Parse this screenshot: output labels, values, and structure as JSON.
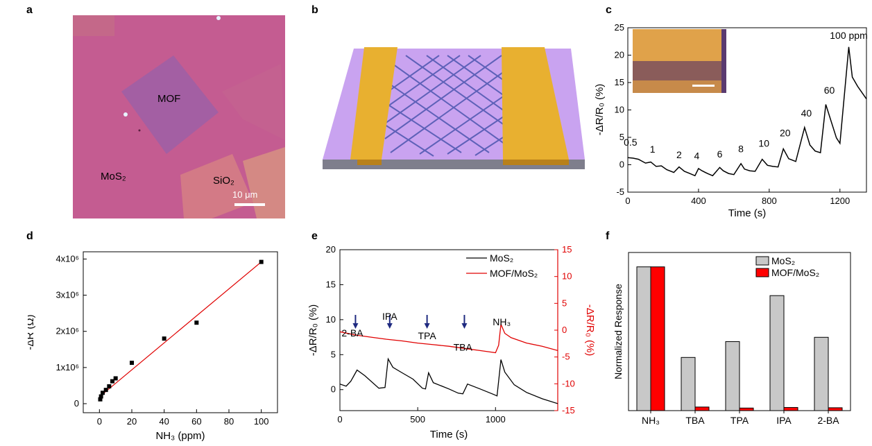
{
  "panels": {
    "a": {
      "letter": "a",
      "labels": {
        "mof": "MOF",
        "mos2": "MoS₂",
        "sio2": "SiO₂",
        "scale": "10 μm"
      }
    },
    "b": {
      "letter": "b"
    },
    "c": {
      "letter": "c",
      "xlabel": "Time (s)",
      "ylabel": "-ΔR/R₀ (%)",
      "xlim": [
        0,
        1350
      ],
      "ylim": [
        -5,
        25
      ],
      "xticks": [
        0,
        400,
        800,
        1200
      ],
      "yticks": [
        -5,
        0,
        5,
        10,
        15,
        20,
        25
      ],
      "annotations": [
        "0.5",
        "1",
        "2",
        "4",
        "6",
        "8",
        "10",
        "20",
        "40",
        "60",
        "100 ppm"
      ]
    },
    "d": {
      "letter": "d",
      "xlabel": "NH₃ (ppm)",
      "ylabel": "-ΔR (Ω)",
      "xticks": [
        0,
        20,
        40,
        60,
        80,
        100
      ],
      "ytick_labels": [
        "0",
        "1x10⁶",
        "2x10⁶",
        "3x10⁶",
        "4x10⁶"
      ]
    },
    "e": {
      "letter": "e",
      "xlabel": "Time (s)",
      "ylabel_left": "-ΔR/R₀ (%)",
      "ylabel_right": "-ΔR/R₀ (%)",
      "xticks": [
        0,
        500,
        1000
      ],
      "yticks_left": [
        0,
        5,
        10,
        15,
        20
      ],
      "yticks_right": [
        -15,
        -10,
        -5,
        0,
        5,
        10,
        15
      ],
      "legend": [
        "MoS₂",
        "MOF/MoS₂"
      ],
      "annotations": [
        "2-BA",
        "IPA",
        "TPA",
        "TBA",
        "NH₃"
      ]
    },
    "f": {
      "letter": "f",
      "ylabel": "Normalized Response",
      "legend": [
        "MoS₂",
        "MOF/MoS₂"
      ]
    }
  },
  "colors": {
    "mos2": "#000000",
    "mof_mos2": "#e00000",
    "bar_gray": "#c8c8c8",
    "bar_red": "#ff0000",
    "arrow": "#1f2a80",
    "gold": "#e8b030",
    "substrate": "#c9a3f0"
  },
  "chart_data": [
    {
      "panel": "c",
      "type": "line",
      "x": [
        0,
        30,
        60,
        100,
        130,
        160,
        190,
        220,
        260,
        290,
        320,
        350,
        380,
        400,
        420,
        450,
        480,
        520,
        540,
        570,
        600,
        640,
        660,
        690,
        720,
        760,
        790,
        820,
        850,
        880,
        910,
        950,
        1000,
        1030,
        1060,
        1090,
        1120,
        1180,
        1200,
        1250,
        1270,
        1300,
        1350
      ],
      "y": [
        1.3,
        1.2,
        1.0,
        0.3,
        0.5,
        -0.3,
        -0.2,
        -0.9,
        -1.4,
        -0.4,
        -1.2,
        -1.6,
        -2.0,
        -0.7,
        -1.1,
        -1.6,
        -2.0,
        -0.5,
        -1.1,
        -1.6,
        -1.8,
        0.2,
        -0.8,
        -1.1,
        -1.2,
        1.0,
        -0.1,
        -0.3,
        -0.4,
        2.9,
        1.1,
        0.6,
        6.8,
        3.6,
        2.5,
        2.2,
        11.0,
        4.9,
        3.9,
        21.5,
        16.0,
        14.3,
        12.0
      ]
    },
    {
      "panel": "d",
      "type": "scatter",
      "x": [
        0.5,
        1,
        2,
        4,
        6,
        8,
        10,
        20,
        40,
        60,
        100
      ],
      "y": [
        120000,
        200000,
        300000,
        380000,
        480000,
        620000,
        700000,
        1130000,
        1800000,
        2240000,
        3920000
      ],
      "fit": {
        "x": [
          0,
          100
        ],
        "y": [
          190000,
          3920000
        ]
      },
      "ylim": [
        -250000,
        4200000
      ],
      "xlim": [
        -10,
        110
      ]
    },
    {
      "panel": "e",
      "type": "line",
      "series": [
        {
          "name": "MoS₂",
          "axis": "left",
          "x": [
            0,
            40,
            70,
            110,
            160,
            250,
            290,
            310,
            340,
            400,
            470,
            530,
            550,
            570,
            600,
            700,
            760,
            790,
            820,
            900,
            990,
            1010,
            1035,
            1060,
            1120,
            1200,
            1300,
            1400
          ],
          "y": [
            0.8,
            0.5,
            1.2,
            2.8,
            2.0,
            0.2,
            0.3,
            4.4,
            3.2,
            2.4,
            1.5,
            0.2,
            0.1,
            2.4,
            1.0,
            0.1,
            -0.5,
            -0.6,
            0.8,
            0.1,
            -0.7,
            -0.9,
            4.3,
            2.5,
            0.7,
            -0.4,
            -1.3,
            -2.0
          ]
        },
        {
          "name": "MOF/MoS₂",
          "axis": "right",
          "x": [
            0,
            100,
            200,
            300,
            400,
            500,
            600,
            700,
            800,
            900,
            1000,
            1020,
            1035,
            1060,
            1100,
            1200,
            1300,
            1400
          ],
          "y": [
            -0.3,
            -0.9,
            -1.3,
            -1.7,
            -2.0,
            -2.4,
            -2.7,
            -3.0,
            -3.4,
            -3.8,
            -4.2,
            -2.8,
            1.1,
            -0.6,
            -1.4,
            -2.4,
            -3.0,
            -3.8
          ]
        }
      ],
      "arrows_at": [
        100,
        320,
        560,
        800
      ],
      "xlim": [
        0,
        1400
      ],
      "ylim_left": [
        -3,
        20
      ],
      "ylim_right": [
        -15,
        15
      ]
    },
    {
      "panel": "f",
      "type": "bar",
      "categories": [
        "NH₃",
        "TBA",
        "TPA",
        "IPA",
        "2-BA"
      ],
      "series": [
        {
          "name": "MoS₂",
          "values": [
            1.0,
            0.37,
            0.48,
            0.8,
            0.51
          ]
        },
        {
          "name": "MOF/MoS₂",
          "values": [
            1.0,
            0.025,
            0.018,
            0.022,
            0.02
          ]
        }
      ],
      "ylim": [
        0,
        1.1
      ]
    }
  ]
}
